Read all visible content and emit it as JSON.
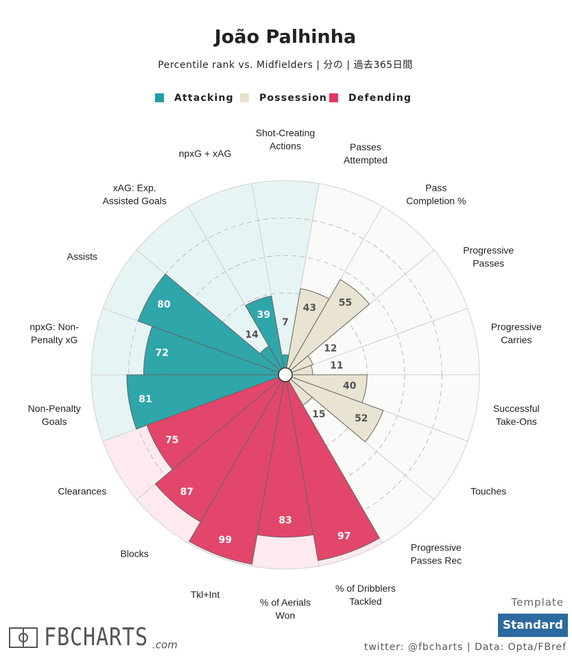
{
  "chart_data": {
    "type": "polar_bar",
    "title": "João Palhinha",
    "subtitle": "Percentile rank vs. Midfielders | 分の | 過去365日間",
    "categories": [
      "Shot-Creating\nActions",
      "Passes\nAttempted",
      "Pass\nCompletion %",
      "Progressive\nPasses",
      "Progressive\nCarries",
      "Successful\nTake-Ons",
      "Touches",
      "Progressive\nPasses Rec",
      "% of Dribblers\nTackled",
      "% of Aerials\nWon",
      "Tkl+Int",
      "Blocks",
      "Clearances",
      "Non-Penalty\nGoals",
      "npxG: Non-\nPenalty xG",
      "Assists",
      "xAG: Exp.\nAssisted Goals",
      "npxG + xAG"
    ],
    "series": [
      {
        "name": "Attacking",
        "color": "#1f9ea3",
        "background_color": "#e7f4f4",
        "label_color": "#ffffff",
        "values": [
          7,
          null,
          null,
          null,
          null,
          null,
          null,
          null,
          null,
          null,
          null,
          null,
          null,
          81,
          72,
          80,
          14,
          39
        ]
      },
      {
        "name": "Possession",
        "color": "#e7e1cd",
        "background_color": "#fafaf8",
        "label_color": "#555555",
        "values": [
          null,
          43,
          55,
          12,
          11,
          40,
          52,
          15,
          null,
          null,
          null,
          null,
          null,
          null,
          null,
          null,
          null,
          null
        ]
      },
      {
        "name": "Defending",
        "color": "#e1375f",
        "background_color": "#fceaee",
        "label_color": "#ffffff",
        "values": [
          null,
          null,
          null,
          null,
          null,
          null,
          null,
          null,
          97,
          83,
          99,
          87,
          75,
          null,
          null,
          null,
          null,
          null
        ]
      }
    ],
    "rlim": [
      0,
      100
    ],
    "rticks": [
      40,
      60,
      80
    ]
  },
  "footer": {
    "brand": "FBCHARTS",
    "brand_suffix": ".com",
    "template_label": "Template",
    "template_button": "Standard",
    "credit": "twitter: @fbcharts | Data: Opta/FBref"
  }
}
